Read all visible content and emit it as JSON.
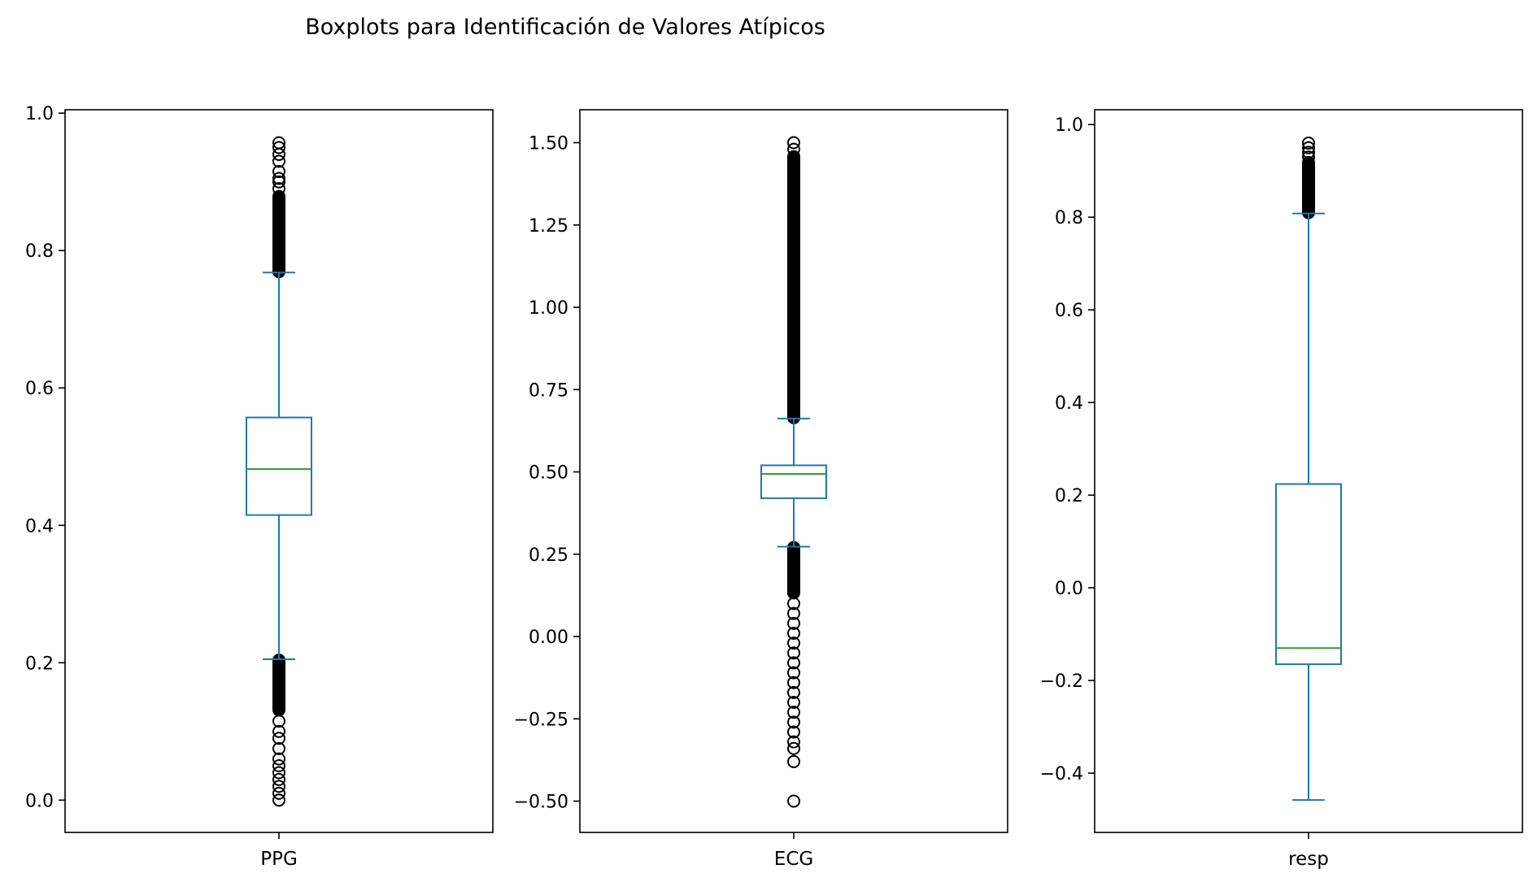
{
  "chart_data": {
    "title": "Boxplots para Identificación de Valores Atípicos",
    "colors": {
      "box": "#1f77b4",
      "median": "#2ca02c",
      "flier": "#000000"
    },
    "panels": [
      {
        "type": "box",
        "category": "PPG",
        "ylim": [
          -0.047,
          1.005
        ],
        "yticks": [
          0.0,
          0.2,
          0.4,
          0.6,
          0.8,
          1.0
        ],
        "ytick_labels": [
          "0.0",
          "0.2",
          "0.4",
          "0.6",
          "0.8",
          "1.0"
        ],
        "whisker_low": 0.205,
        "q1": 0.415,
        "median": 0.482,
        "q3": 0.557,
        "whisker_high": 0.768,
        "outliers_high_dense": [
          0.768,
          0.88
        ],
        "outliers_high": [
          0.89,
          0.9,
          0.905,
          0.915,
          0.93,
          0.94,
          0.95,
          0.957
        ],
        "outliers_low_dense": [
          0.13,
          0.205
        ],
        "outliers_low": [
          0.0,
          0.01,
          0.02,
          0.03,
          0.04,
          0.05,
          0.06,
          0.075,
          0.09,
          0.1,
          0.115
        ]
      },
      {
        "type": "box",
        "category": "ECG",
        "ylim": [
          -0.595,
          1.6
        ],
        "yticks": [
          -0.5,
          -0.25,
          0.0,
          0.25,
          0.5,
          0.75,
          1.0,
          1.25,
          1.5
        ],
        "ytick_labels": [
          "−0.50",
          "−0.25",
          "0.00",
          "0.25",
          "0.50",
          "0.75",
          "1.00",
          "1.25",
          "1.50"
        ],
        "whisker_low": 0.273,
        "q1": 0.42,
        "median": 0.494,
        "q3": 0.52,
        "whisker_high": 0.662,
        "outliers_high_dense": [
          0.662,
          1.46
        ],
        "outliers_high": [
          1.48,
          1.5
        ],
        "outliers_low_dense": [
          0.13,
          0.273
        ],
        "outliers_low": [
          0.1,
          0.07,
          0.04,
          0.01,
          -0.02,
          -0.05,
          -0.08,
          -0.11,
          -0.14,
          -0.17,
          -0.2,
          -0.23,
          -0.26,
          -0.29,
          -0.32,
          -0.34,
          -0.38,
          -0.5
        ]
      },
      {
        "type": "box",
        "category": "resp",
        "ylim": [
          -0.528,
          1.032
        ],
        "yticks": [
          -0.4,
          -0.2,
          0.0,
          0.2,
          0.4,
          0.6,
          0.8,
          1.0
        ],
        "ytick_labels": [
          "−0.4",
          "−0.2",
          "0.0",
          "0.2",
          "0.4",
          "0.6",
          "0.8",
          "1.0"
        ],
        "whisker_low": -0.458,
        "q1": -0.165,
        "median": -0.13,
        "q3": 0.224,
        "whisker_high": 0.808,
        "outliers_high_dense": [
          0.808,
          0.92
        ],
        "outliers_high": [
          0.93,
          0.94,
          0.95,
          0.96
        ]
      }
    ]
  }
}
